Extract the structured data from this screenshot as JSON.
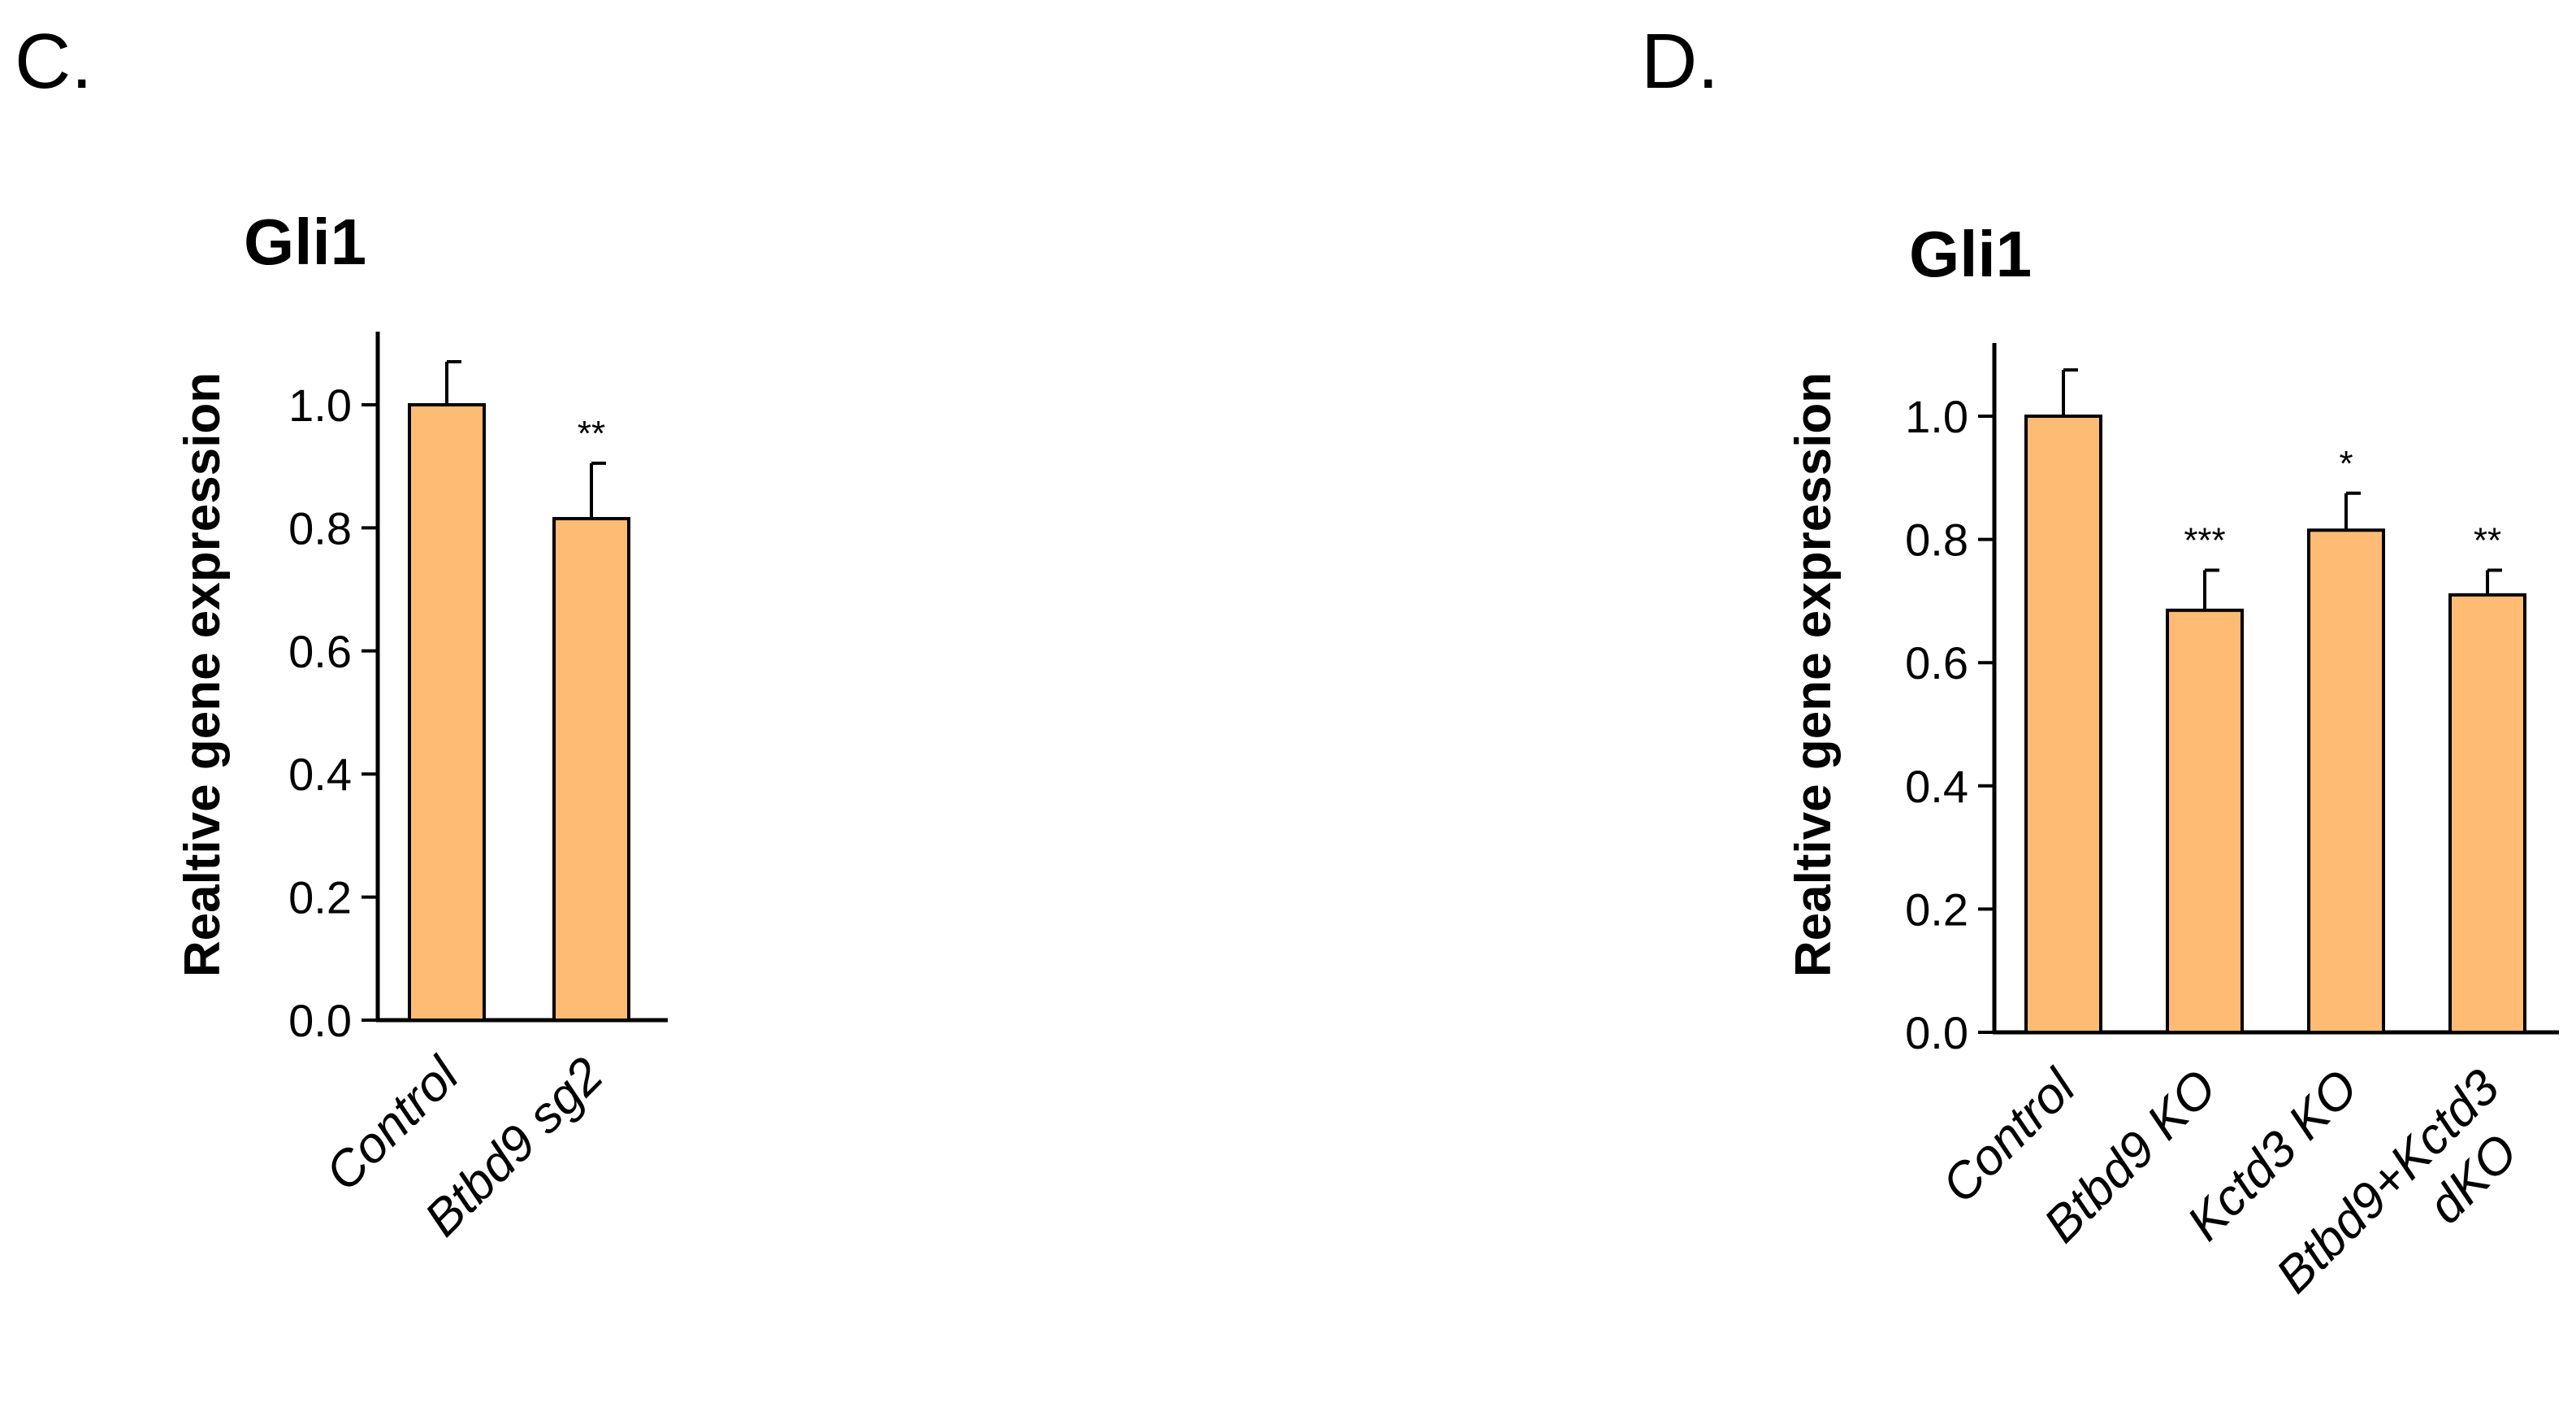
{
  "panels": [
    {
      "label": "C.",
      "chart_data": {
        "type": "bar",
        "title": "Gli1",
        "xlabel": "",
        "ylabel": "Realtive gene expression",
        "categories": [
          [
            "Control"
          ],
          [
            "Btbd9 sg2"
          ]
        ],
        "values": [
          1.0,
          0.815
        ],
        "errors": [
          0.07,
          0.09
        ],
        "significance": [
          "",
          "**"
        ],
        "ylim": [
          0,
          1.1
        ],
        "yticks": [
          "0.0",
          "0.2",
          "0.4",
          "0.6",
          "0.8",
          "1.0"
        ],
        "bar_color": "#FDBB74",
        "grid": false
      }
    },
    {
      "label": "D.",
      "chart_data": {
        "type": "bar",
        "title": "Gli1",
        "xlabel": "",
        "ylabel": "Realtive gene expression",
        "categories": [
          [
            "Control"
          ],
          [
            "Btbd9 KO"
          ],
          [
            "Kctd3 KO"
          ],
          [
            "Btbd9+Kctd3",
            "dKO"
          ]
        ],
        "values": [
          1.0,
          0.685,
          0.815,
          0.71
        ],
        "errors": [
          0.075,
          0.065,
          0.06,
          0.04
        ],
        "significance": [
          "",
          "***",
          "*",
          "**"
        ],
        "ylim": [
          0,
          1.1
        ],
        "yticks": [
          "0.0",
          "0.2",
          "0.4",
          "0.6",
          "0.8",
          "1.0"
        ],
        "bar_color": "#FDBB74",
        "grid": false
      }
    }
  ]
}
